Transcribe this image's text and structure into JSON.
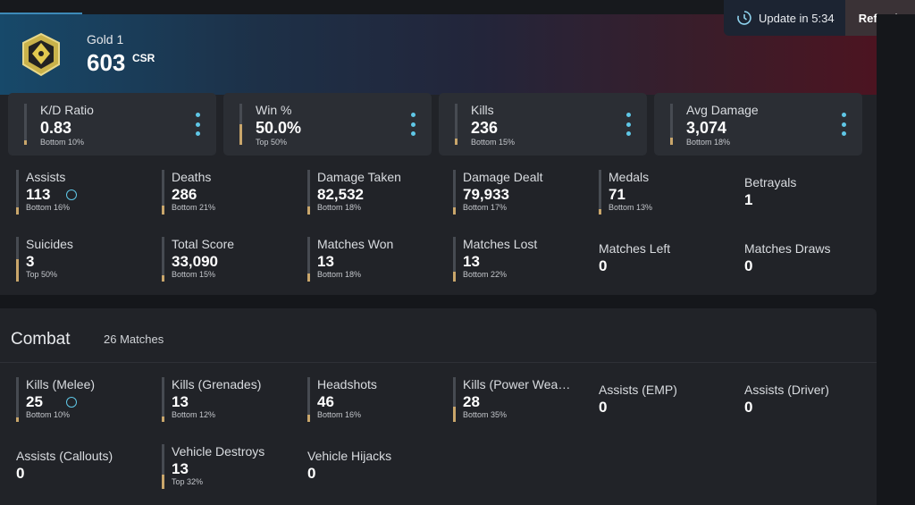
{
  "header": {
    "rank_name": "Gold 1",
    "csr_value": "603",
    "csr_unit": "CSR",
    "update_text": "Update in 5:34",
    "refresh_label": "Refresh"
  },
  "colors": {
    "accent": "#5fc7e6",
    "gold": "#c9a66b",
    "panel": "#212328",
    "card": "#2b2e34"
  },
  "overview": {
    "big_cards": [
      {
        "label": "K/D Ratio",
        "value": "0.83",
        "sub": "Bottom 10%",
        "fill": 0.1
      },
      {
        "label": "Win %",
        "value": "50.0%",
        "sub": "Top 50%",
        "fill": 0.5
      },
      {
        "label": "Kills",
        "value": "236",
        "sub": "Bottom 15%",
        "fill": 0.15
      },
      {
        "label": "Avg Damage",
        "value": "3,074",
        "sub": "Bottom 18%",
        "fill": 0.18
      }
    ],
    "stats": [
      {
        "label": "Assists",
        "value": "113",
        "sub": "Bottom 16%",
        "fill": 0.16
      },
      {
        "label": "Deaths",
        "value": "286",
        "sub": "Bottom 21%",
        "fill": 0.21
      },
      {
        "label": "Damage Taken",
        "value": "82,532",
        "sub": "Bottom 18%",
        "fill": 0.18
      },
      {
        "label": "Damage Dealt",
        "value": "79,933",
        "sub": "Bottom 17%",
        "fill": 0.17
      },
      {
        "label": "Medals",
        "value": "71",
        "sub": "Bottom 13%",
        "fill": 0.13
      },
      {
        "label": "Betrayals",
        "value": "1"
      },
      {
        "label": "Suicides",
        "value": "3",
        "sub": "Top 50%",
        "fill": 0.5
      },
      {
        "label": "Total Score",
        "value": "33,090",
        "sub": "Bottom 15%",
        "fill": 0.15
      },
      {
        "label": "Matches Won",
        "value": "13",
        "sub": "Bottom 18%",
        "fill": 0.18
      },
      {
        "label": "Matches Lost",
        "value": "13",
        "sub": "Bottom 22%",
        "fill": 0.22
      },
      {
        "label": "Matches Left",
        "value": "0"
      },
      {
        "label": "Matches Draws",
        "value": "0"
      }
    ]
  },
  "combat": {
    "title": "Combat",
    "match_count": "26 Matches",
    "stats": [
      {
        "label": "Kills (Melee)",
        "value": "25",
        "sub": "Bottom 10%",
        "fill": 0.1
      },
      {
        "label": "Kills (Grenades)",
        "value": "13",
        "sub": "Bottom 12%",
        "fill": 0.12
      },
      {
        "label": "Headshots",
        "value": "46",
        "sub": "Bottom 16%",
        "fill": 0.16
      },
      {
        "label": "Kills (Power Wea…",
        "value": "28",
        "sub": "Bottom 35%",
        "fill": 0.35
      },
      {
        "label": "Assists (EMP)",
        "value": "0"
      },
      {
        "label": "Assists (Driver)",
        "value": "0"
      },
      {
        "label": "Assists (Callouts)",
        "value": "0"
      },
      {
        "label": "Vehicle Destroys",
        "value": "13",
        "sub": "Top 32%",
        "fill": 0.32
      },
      {
        "label": "Vehicle Hijacks",
        "value": "0"
      }
    ]
  }
}
